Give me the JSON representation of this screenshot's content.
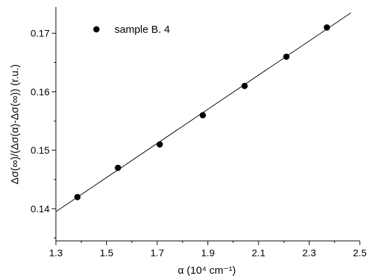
{
  "chart_data": {
    "type": "scatter",
    "title": "",
    "xlabel": "α (10⁴ cm⁻¹)",
    "ylabel": "Δσ(∞)/(Δσ(α)-Δσ(∞)) (r.u.)",
    "xlim": [
      1.3,
      2.5
    ],
    "ylim": [
      0.1345,
      0.1745
    ],
    "xticks": [
      1.3,
      1.5,
      1.7,
      1.9,
      2.1,
      2.3,
      2.5
    ],
    "xtick_labels": [
      "1.3",
      "1.5",
      "1.7",
      "1.9",
      "2.1",
      "2.3",
      "2.5"
    ],
    "yticks": [
      0.14,
      0.15,
      0.16,
      0.17
    ],
    "ytick_labels": [
      "0.14",
      "0.15",
      "0.16",
      "0.17"
    ],
    "grid": false,
    "legend_position": "top-left",
    "series": [
      {
        "name": "sample B. 4",
        "marker": "circle",
        "color": "#000000",
        "x": [
          1.385,
          1.545,
          1.71,
          1.88,
          2.045,
          2.21,
          2.37
        ],
        "y": [
          0.142,
          0.147,
          0.151,
          0.156,
          0.161,
          0.166,
          0.171
        ]
      }
    ],
    "fit_line": {
      "x": [
        1.3,
        2.465
      ],
      "y": [
        0.1395,
        0.1735
      ],
      "color": "#000000"
    }
  }
}
